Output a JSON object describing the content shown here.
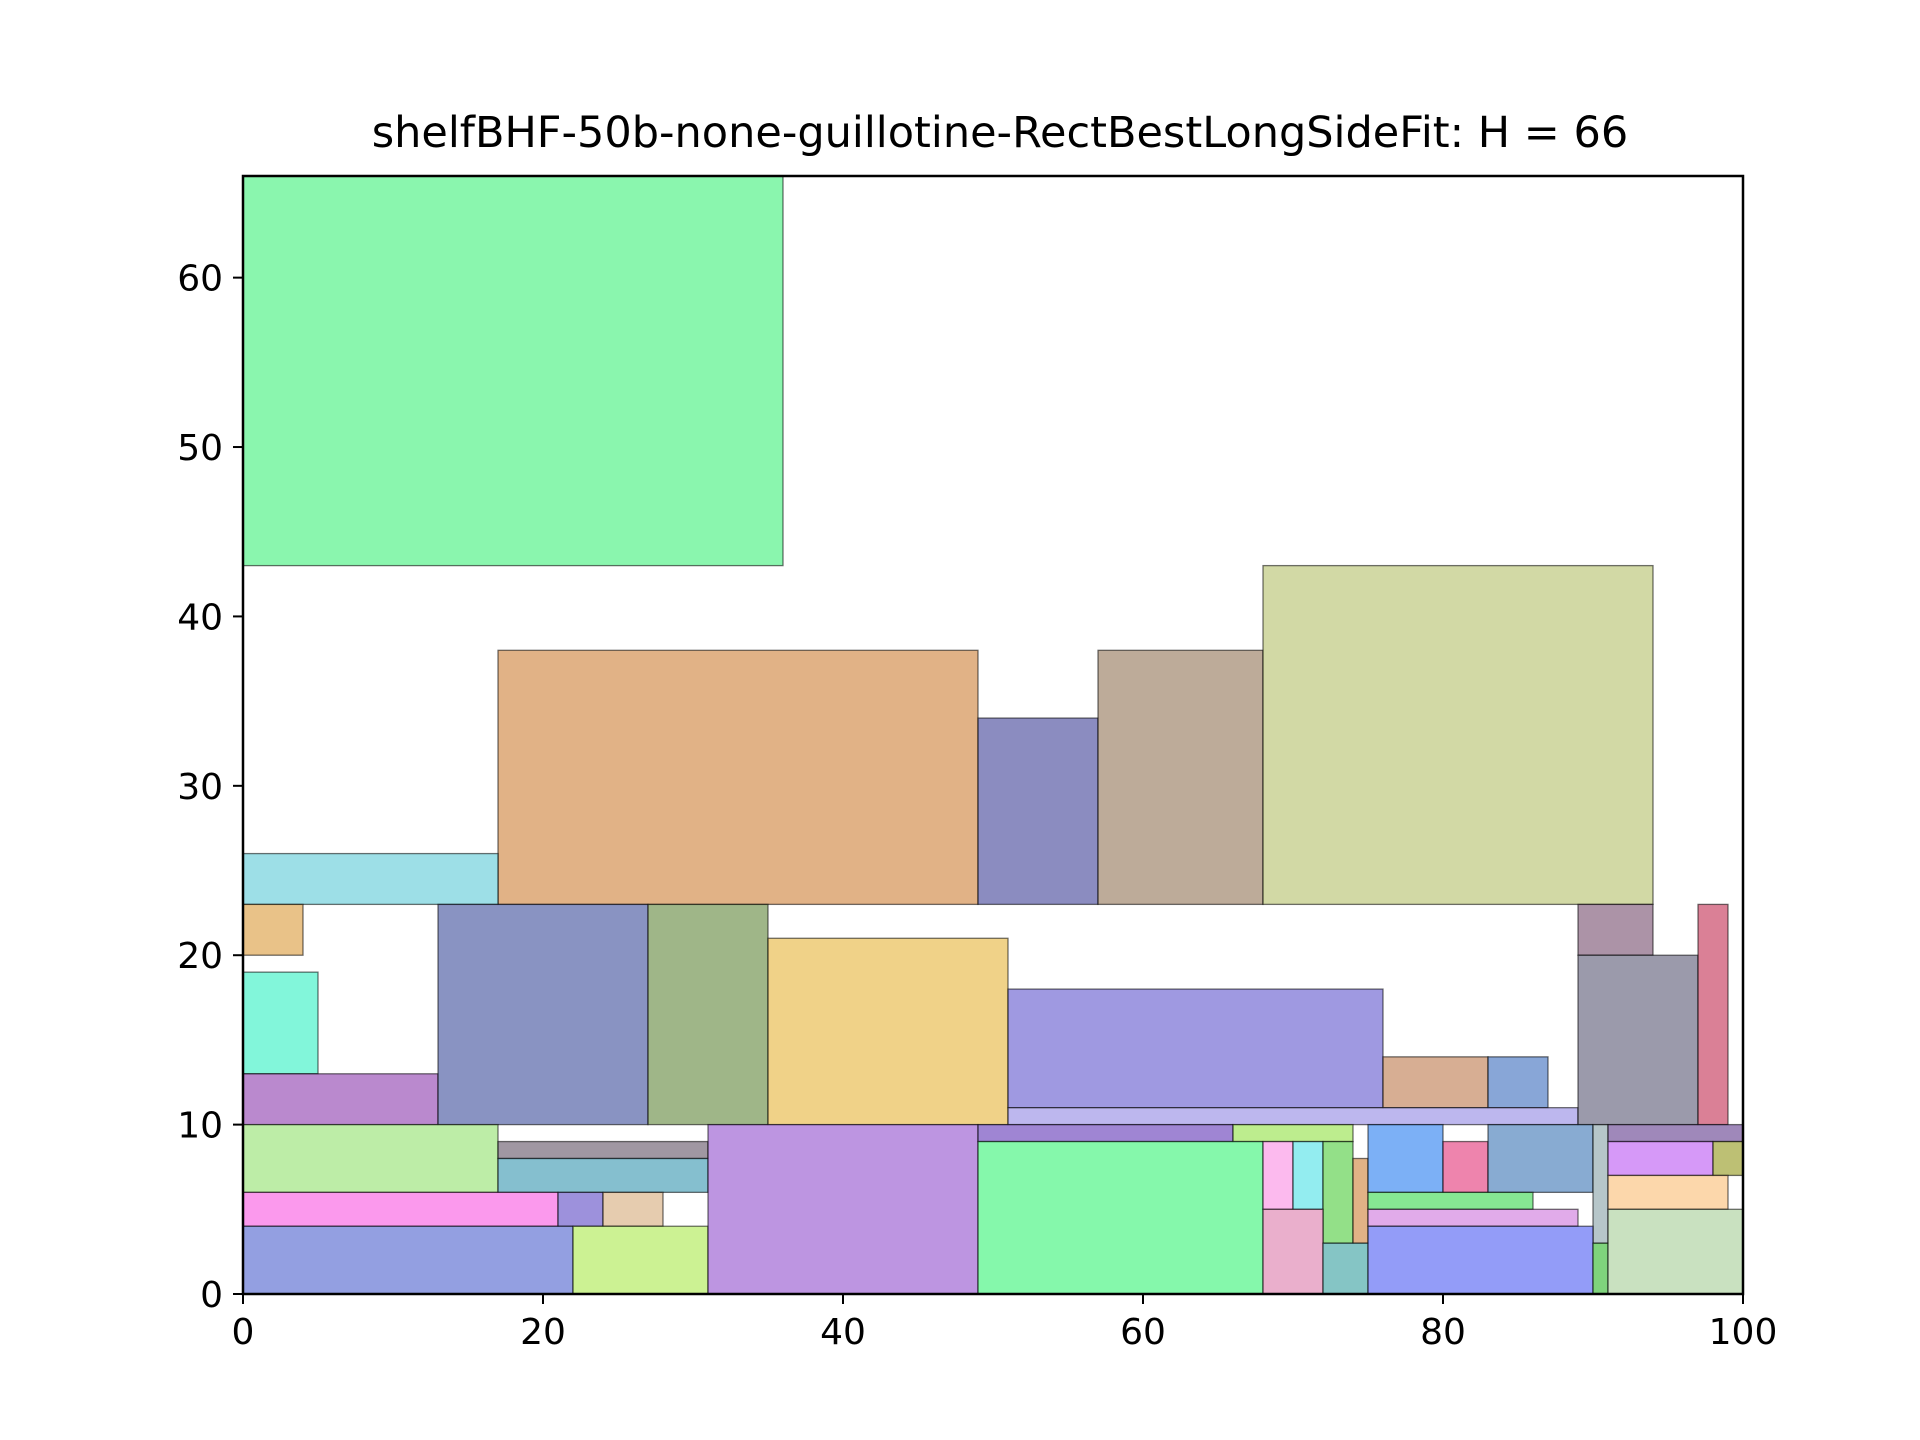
{
  "chart_data": {
    "type": "rectangle-packing",
    "title": "shelfBHF-50b-none-guillotine-RectBestLongSideFit: H = 66",
    "xlabel": "",
    "ylabel": "",
    "xlim": [
      0,
      100
    ],
    "ylim": [
      0,
      66
    ],
    "xticks": [
      "0",
      "20",
      "40",
      "60",
      "80",
      "100"
    ],
    "yticks": [
      "0",
      "10",
      "20",
      "30",
      "40",
      "50",
      "60"
    ],
    "grid": false,
    "rects": [
      {
        "x": 0,
        "y": 43,
        "w": 36,
        "h": 23,
        "color": "#5df28f"
      },
      {
        "x": 17,
        "y": 23,
        "w": 32,
        "h": 15,
        "color": "#d69458"
      },
      {
        "x": 49,
        "y": 23,
        "w": 8,
        "h": 11,
        "color": "#5e60a8"
      },
      {
        "x": 57,
        "y": 23,
        "w": 11,
        "h": 15,
        "color": "#a48b72"
      },
      {
        "x": 68,
        "y": 23,
        "w": 26,
        "h": 20,
        "color": "#c0cb82"
      },
      {
        "x": 0,
        "y": 23,
        "w": 17,
        "h": 3,
        "color": "#77d3de"
      },
      {
        "x": 0,
        "y": 20,
        "w": 4,
        "h": 3,
        "color": "#e0aa5a"
      },
      {
        "x": 0,
        "y": 13,
        "w": 5,
        "h": 6,
        "color": "#52f2cc"
      },
      {
        "x": 0,
        "y": 10,
        "w": 13,
        "h": 3,
        "color": "#a05bbb"
      },
      {
        "x": 13,
        "y": 10,
        "w": 14,
        "h": 13,
        "color": "#5b6aaa"
      },
      {
        "x": 27,
        "y": 10,
        "w": 8,
        "h": 13,
        "color": "#7a9a5a"
      },
      {
        "x": 35,
        "y": 10,
        "w": 16,
        "h": 11,
        "color": "#eac15a"
      },
      {
        "x": 51,
        "y": 11,
        "w": 25,
        "h": 7,
        "color": "#7a72d6"
      },
      {
        "x": 76,
        "y": 11,
        "w": 7,
        "h": 3,
        "color": "#c88f6a"
      },
      {
        "x": 83,
        "y": 11,
        "w": 4,
        "h": 3,
        "color": "#5a83c8"
      },
      {
        "x": 51,
        "y": 10,
        "w": 38,
        "h": 1,
        "color": "#a39be8"
      },
      {
        "x": 89,
        "y": 20,
        "w": 5,
        "h": 3,
        "color": "#8c6a85"
      },
      {
        "x": 89,
        "y": 10,
        "w": 8,
        "h": 10,
        "color": "#74738a"
      },
      {
        "x": 97,
        "y": 10,
        "w": 2,
        "h": 13,
        "color": "#cc4f6e"
      },
      {
        "x": 0,
        "y": 6,
        "w": 17,
        "h": 4,
        "color": "#a3e685"
      },
      {
        "x": 17,
        "y": 8,
        "w": 14,
        "h": 1,
        "color": "#7c6f7e"
      },
      {
        "x": 17,
        "y": 6,
        "w": 14,
        "h": 2,
        "color": "#56a6bc"
      },
      {
        "x": 0,
        "y": 4,
        "w": 21,
        "h": 2,
        "color": "#fa72e6"
      },
      {
        "x": 21,
        "y": 4,
        "w": 3,
        "h": 2,
        "color": "#7766ce"
      },
      {
        "x": 24,
        "y": 4,
        "w": 4,
        "h": 2,
        "color": "#dcb890"
      },
      {
        "x": 0,
        "y": 0,
        "w": 22,
        "h": 4,
        "color": "#6a7ad6"
      },
      {
        "x": 22,
        "y": 0,
        "w": 9,
        "h": 4,
        "color": "#b8ed6a"
      },
      {
        "x": 31,
        "y": 0,
        "w": 18,
        "h": 10,
        "color": "#a46cd6"
      },
      {
        "x": 49,
        "y": 9,
        "w": 17,
        "h": 1,
        "color": "#7a56c2"
      },
      {
        "x": 66,
        "y": 9,
        "w": 8,
        "h": 1,
        "color": "#a3e662"
      },
      {
        "x": 49,
        "y": 0,
        "w": 19,
        "h": 9,
        "color": "#56f58a"
      },
      {
        "x": 68,
        "y": 5,
        "w": 2,
        "h": 4,
        "color": "#fba0e8"
      },
      {
        "x": 70,
        "y": 5,
        "w": 2,
        "h": 4,
        "color": "#6ae6ea"
      },
      {
        "x": 72,
        "y": 3,
        "w": 2,
        "h": 6,
        "color": "#6ad45a"
      },
      {
        "x": 74,
        "y": 3,
        "w": 1,
        "h": 5,
        "color": "#d69458"
      },
      {
        "x": 68,
        "y": 0,
        "w": 4,
        "h": 5,
        "color": "#e290b8"
      },
      {
        "x": 72,
        "y": 0,
        "w": 3,
        "h": 3,
        "color": "#56aeae"
      },
      {
        "x": 75,
        "y": 6,
        "w": 5,
        "h": 4,
        "color": "#4a92f2"
      },
      {
        "x": 80,
        "y": 6,
        "w": 3,
        "h": 3,
        "color": "#e8558e"
      },
      {
        "x": 83,
        "y": 6,
        "w": 7,
        "h": 4,
        "color": "#5a8ac0"
      },
      {
        "x": 90,
        "y": 3,
        "w": 1,
        "h": 7,
        "color": "#9ab0b4"
      },
      {
        "x": 75,
        "y": 5,
        "w": 11,
        "h": 1,
        "color": "#58de6a"
      },
      {
        "x": 75,
        "y": 4,
        "w": 14,
        "h": 1,
        "color": "#d68ae2"
      },
      {
        "x": 75,
        "y": 0,
        "w": 15,
        "h": 4,
        "color": "#6a76f5"
      },
      {
        "x": 90,
        "y": 0,
        "w": 1,
        "h": 3,
        "color": "#4ec24a"
      },
      {
        "x": 91,
        "y": 9,
        "w": 9,
        "h": 1,
        "color": "#7a5aa0"
      },
      {
        "x": 91,
        "y": 7,
        "w": 7,
        "h": 2,
        "color": "#c672f5"
      },
      {
        "x": 98,
        "y": 7,
        "w": 2,
        "h": 2,
        "color": "#a4a83e"
      },
      {
        "x": 91,
        "y": 5,
        "w": 8,
        "h": 2,
        "color": "#fbc88a"
      },
      {
        "x": 91,
        "y": 0,
        "w": 9,
        "h": 5,
        "color": "#b4d6a8"
      }
    ]
  }
}
